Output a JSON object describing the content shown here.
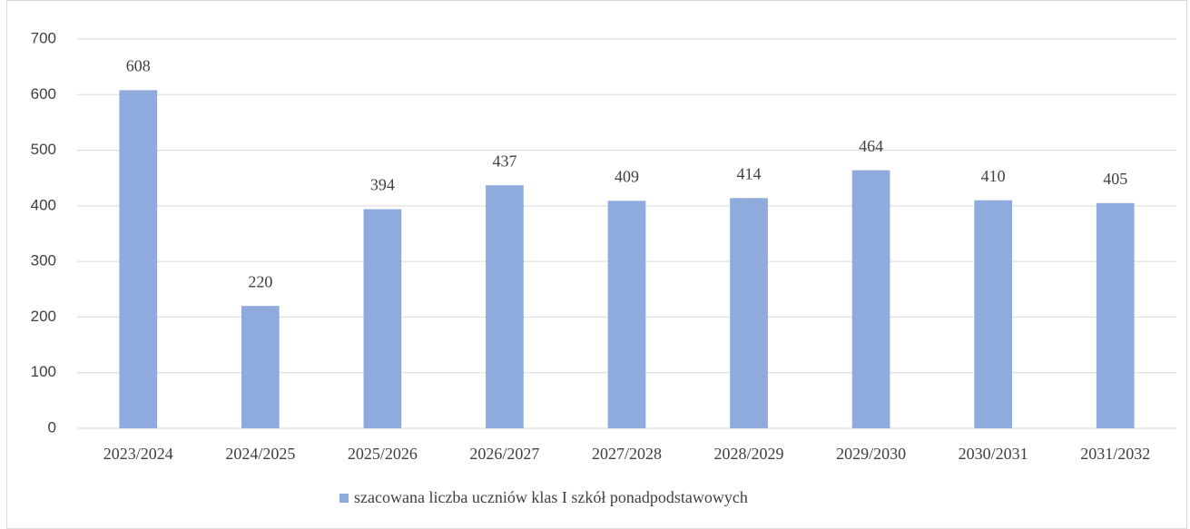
{
  "chart_data": {
    "type": "bar",
    "categories": [
      "2023/2024",
      "2024/2025",
      "2025/2026",
      "2026/2027",
      "2027/2028",
      "2028/2029",
      "2029/2030",
      "2030/2031",
      "2031/2032"
    ],
    "series": [
      {
        "name": "szacowana liczba uczniów klas I szkół ponadpodstawowych",
        "color": "#8faadc",
        "values": [
          608,
          220,
          394,
          437,
          409,
          414,
          464,
          410,
          405
        ]
      }
    ],
    "ylim": [
      0,
      700
    ],
    "yticks": [
      0,
      100,
      200,
      300,
      400,
      500,
      600,
      700
    ],
    "grid": true,
    "legend": "bottom"
  }
}
